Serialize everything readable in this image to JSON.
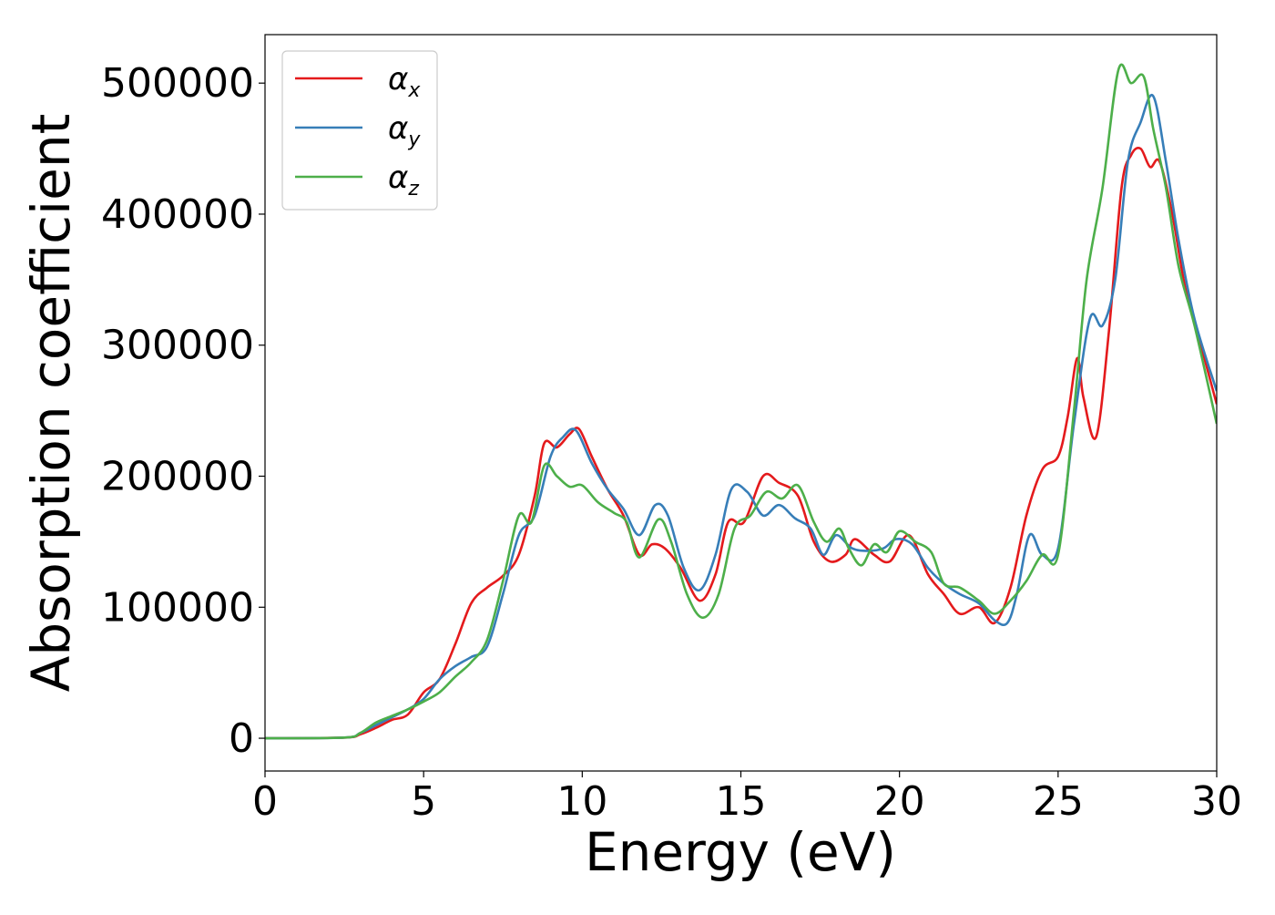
{
  "chart_data": {
    "type": "line",
    "title": "",
    "xlabel": "Energy (eV)",
    "ylabel": "Absorption coefficient",
    "xlim": [
      0,
      30
    ],
    "ylim": [
      -25000,
      537000
    ],
    "xticks": [
      0,
      5,
      10,
      15,
      20,
      25,
      30
    ],
    "xtick_labels": [
      "0",
      "5",
      "10",
      "15",
      "20",
      "25",
      "30"
    ],
    "yticks": [
      0,
      100000,
      200000,
      300000,
      400000,
      500000
    ],
    "ytick_labels": [
      "0",
      "100000",
      "200000",
      "300000",
      "400000",
      "500000"
    ],
    "grid": false,
    "legend_position": "top-left",
    "series": [
      {
        "name": "α",
        "subscript": "x",
        "color": "#e41a1c",
        "points": [
          [
            0,
            0
          ],
          [
            2.5,
            500
          ],
          [
            3,
            3000
          ],
          [
            3.5,
            8000
          ],
          [
            4,
            14000
          ],
          [
            4.5,
            18000
          ],
          [
            5,
            35000
          ],
          [
            5.5,
            45000
          ],
          [
            6,
            72000
          ],
          [
            6.5,
            103000
          ],
          [
            7,
            115000
          ],
          [
            7.5,
            124000
          ],
          [
            8,
            140000
          ],
          [
            8.5,
            185000
          ],
          [
            8.8,
            225000
          ],
          [
            9.2,
            222000
          ],
          [
            9.6,
            232000
          ],
          [
            9.9,
            236000
          ],
          [
            10.3,
            215000
          ],
          [
            10.8,
            190000
          ],
          [
            11.3,
            170000
          ],
          [
            11.8,
            140000
          ],
          [
            12.2,
            148000
          ],
          [
            12.6,
            145000
          ],
          [
            13.1,
            130000
          ],
          [
            13.7,
            105000
          ],
          [
            14.2,
            125000
          ],
          [
            14.6,
            165000
          ],
          [
            15.1,
            165000
          ],
          [
            15.7,
            200000
          ],
          [
            16.2,
            195000
          ],
          [
            16.8,
            185000
          ],
          [
            17.3,
            150000
          ],
          [
            17.8,
            135000
          ],
          [
            18.3,
            140000
          ],
          [
            18.6,
            152000
          ],
          [
            19.2,
            140000
          ],
          [
            19.7,
            135000
          ],
          [
            20.3,
            155000
          ],
          [
            20.9,
            125000
          ],
          [
            21.4,
            110000
          ],
          [
            21.9,
            95000
          ],
          [
            22.5,
            100000
          ],
          [
            23,
            88000
          ],
          [
            23.5,
            115000
          ],
          [
            24,
            170000
          ],
          [
            24.5,
            205000
          ],
          [
            25,
            215000
          ],
          [
            25.3,
            245000
          ],
          [
            25.6,
            290000
          ],
          [
            25.8,
            260000
          ],
          [
            26.2,
            230000
          ],
          [
            26.6,
            310000
          ],
          [
            27,
            420000
          ],
          [
            27.3,
            445000
          ],
          [
            27.6,
            450000
          ],
          [
            27.9,
            436000
          ],
          [
            28.2,
            440000
          ],
          [
            28.6,
            400000
          ],
          [
            29,
            345000
          ],
          [
            29.5,
            300000
          ],
          [
            30,
            255000
          ]
        ]
      },
      {
        "name": "α",
        "subscript": "y",
        "color": "#377eb8",
        "points": [
          [
            0,
            0
          ],
          [
            2.5,
            500
          ],
          [
            3,
            4000
          ],
          [
            3.5,
            10000
          ],
          [
            4,
            16000
          ],
          [
            4.5,
            22000
          ],
          [
            5,
            30000
          ],
          [
            5.5,
            45000
          ],
          [
            6,
            55000
          ],
          [
            6.5,
            62000
          ],
          [
            7,
            70000
          ],
          [
            7.5,
            110000
          ],
          [
            8,
            155000
          ],
          [
            8.5,
            170000
          ],
          [
            9,
            215000
          ],
          [
            9.4,
            230000
          ],
          [
            9.8,
            235000
          ],
          [
            10.3,
            210000
          ],
          [
            10.8,
            190000
          ],
          [
            11.3,
            175000
          ],
          [
            11.8,
            155000
          ],
          [
            12.3,
            178000
          ],
          [
            12.7,
            170000
          ],
          [
            13.2,
            130000
          ],
          [
            13.7,
            113000
          ],
          [
            14.2,
            140000
          ],
          [
            14.7,
            190000
          ],
          [
            15.2,
            188000
          ],
          [
            15.7,
            170000
          ],
          [
            16.2,
            178000
          ],
          [
            16.7,
            168000
          ],
          [
            17.2,
            160000
          ],
          [
            17.6,
            140000
          ],
          [
            18,
            155000
          ],
          [
            18.5,
            145000
          ],
          [
            19,
            143000
          ],
          [
            19.5,
            145000
          ],
          [
            19.9,
            152000
          ],
          [
            20.4,
            148000
          ],
          [
            20.9,
            130000
          ],
          [
            21.4,
            118000
          ],
          [
            21.9,
            110000
          ],
          [
            22.5,
            103000
          ],
          [
            23,
            90000
          ],
          [
            23.4,
            88000
          ],
          [
            23.7,
            110000
          ],
          [
            24.1,
            155000
          ],
          [
            24.5,
            140000
          ],
          [
            25,
            145000
          ],
          [
            25.5,
            240000
          ],
          [
            26,
            320000
          ],
          [
            26.4,
            315000
          ],
          [
            26.8,
            350000
          ],
          [
            27.2,
            440000
          ],
          [
            27.6,
            470000
          ],
          [
            28,
            490000
          ],
          [
            28.4,
            440000
          ],
          [
            28.8,
            380000
          ],
          [
            29.3,
            320000
          ],
          [
            30,
            265000
          ]
        ]
      },
      {
        "name": "α",
        "subscript": "z",
        "color": "#4daf4a",
        "points": [
          [
            0,
            0
          ],
          [
            2.5,
            500
          ],
          [
            3,
            4000
          ],
          [
            3.5,
            12000
          ],
          [
            4,
            17000
          ],
          [
            4.5,
            22000
          ],
          [
            5,
            28000
          ],
          [
            5.5,
            35000
          ],
          [
            6,
            47000
          ],
          [
            6.5,
            58000
          ],
          [
            7,
            75000
          ],
          [
            7.5,
            120000
          ],
          [
            8,
            170000
          ],
          [
            8.4,
            165000
          ],
          [
            8.8,
            208000
          ],
          [
            9.2,
            200000
          ],
          [
            9.6,
            192000
          ],
          [
            10,
            193000
          ],
          [
            10.5,
            180000
          ],
          [
            11,
            172000
          ],
          [
            11.4,
            165000
          ],
          [
            11.8,
            138000
          ],
          [
            12.4,
            167000
          ],
          [
            12.8,
            150000
          ],
          [
            13.3,
            110000
          ],
          [
            13.8,
            92000
          ],
          [
            14.3,
            110000
          ],
          [
            14.8,
            160000
          ],
          [
            15.3,
            170000
          ],
          [
            15.8,
            188000
          ],
          [
            16.3,
            183000
          ],
          [
            16.8,
            193000
          ],
          [
            17.3,
            165000
          ],
          [
            17.7,
            150000
          ],
          [
            18.1,
            160000
          ],
          [
            18.4,
            145000
          ],
          [
            18.8,
            132000
          ],
          [
            19.2,
            148000
          ],
          [
            19.6,
            142000
          ],
          [
            20,
            158000
          ],
          [
            20.5,
            150000
          ],
          [
            21,
            142000
          ],
          [
            21.4,
            118000
          ],
          [
            21.9,
            115000
          ],
          [
            22.5,
            105000
          ],
          [
            23,
            95000
          ],
          [
            23.5,
            105000
          ],
          [
            24,
            120000
          ],
          [
            24.5,
            140000
          ],
          [
            25,
            140000
          ],
          [
            25.5,
            250000
          ],
          [
            25.9,
            350000
          ],
          [
            26.4,
            420000
          ],
          [
            26.9,
            510000
          ],
          [
            27.3,
            500000
          ],
          [
            27.7,
            505000
          ],
          [
            28,
            465000
          ],
          [
            28.4,
            420000
          ],
          [
            28.8,
            360000
          ],
          [
            29.3,
            315000
          ],
          [
            30,
            240000
          ]
        ]
      }
    ]
  }
}
